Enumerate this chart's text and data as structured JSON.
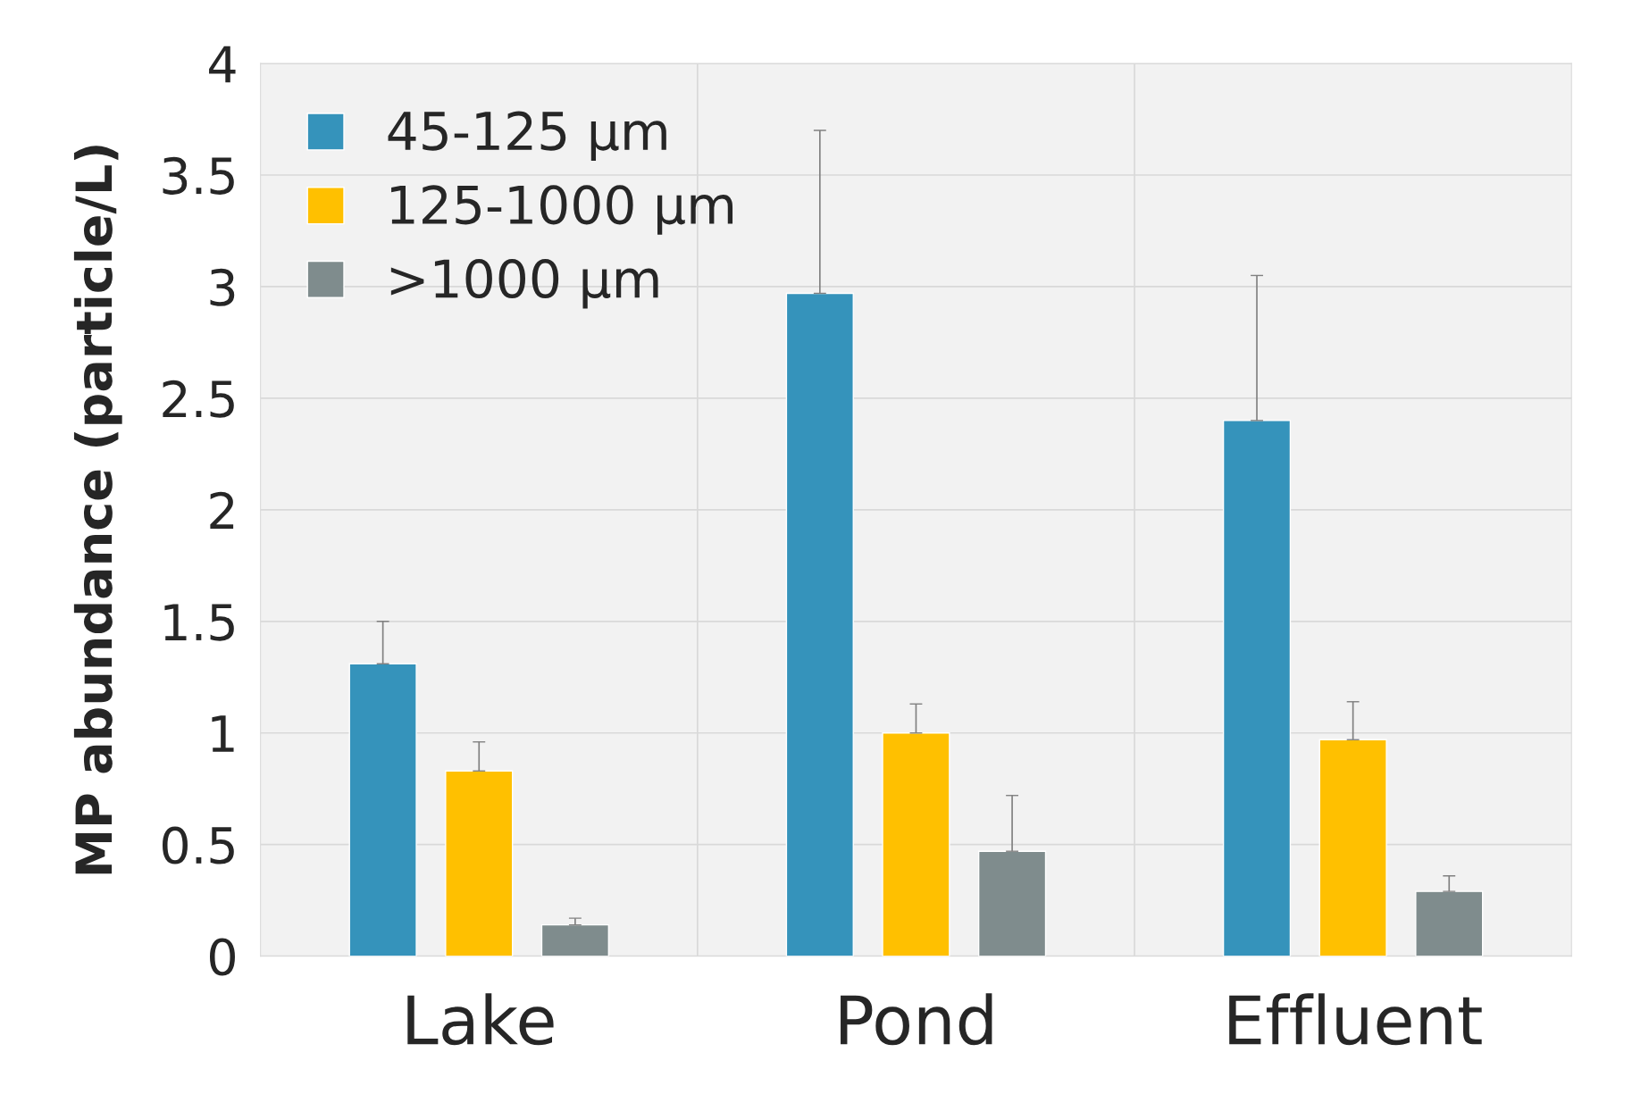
{
  "chart_data": {
    "type": "bar",
    "ylabel": "MP abundance (particle/L)",
    "categories": [
      "Lake",
      "Pond",
      "Effluent"
    ],
    "series": [
      {
        "name": "45-125 µm",
        "color": "#3593bb",
        "values": [
          1.31,
          2.97,
          2.4
        ],
        "errors": [
          [
            1.31,
            1.5
          ],
          [
            2.97,
            3.7
          ],
          [
            2.4,
            3.05
          ]
        ]
      },
      {
        "name": "125-1000 µm",
        "color": "#ffc000",
        "values": [
          0.83,
          1.0,
          0.97
        ],
        "errors": [
          [
            0.83,
            0.96
          ],
          [
            1.0,
            1.13
          ],
          [
            0.97,
            1.14
          ]
        ]
      },
      {
        "name": ">1000 µm",
        "color": "#7f8c8d",
        "values": [
          0.14,
          0.47,
          0.29
        ],
        "errors": [
          [
            0.14,
            0.17
          ],
          [
            0.47,
            0.72
          ],
          [
            0.29,
            0.36
          ]
        ]
      }
    ],
    "ylim": [
      0,
      4
    ],
    "yticks": [
      0,
      {
        "value": 0.5,
        "label": "0.5"
      },
      1,
      {
        "value": 1.5,
        "label": "1.5"
      },
      2,
      {
        "value": 2.5,
        "label": "2.5"
      },
      3,
      {
        "value": 3.5,
        "label": "3.5"
      },
      4
    ],
    "grid": true,
    "legend": "top left"
  }
}
